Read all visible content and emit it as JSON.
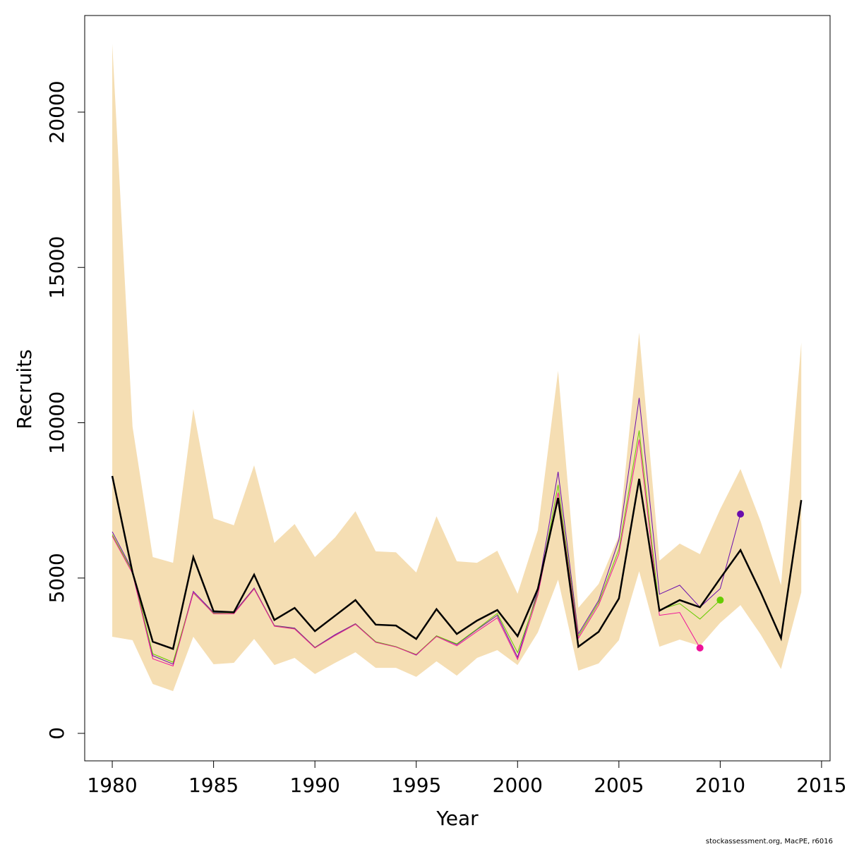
{
  "chart_data": {
    "type": "line",
    "xlabel": "Year",
    "ylabel": "Recruits",
    "footnote": "stockassessment.org, MacPE, r6016",
    "x": [
      1980,
      1981,
      1982,
      1983,
      1984,
      1985,
      1986,
      1987,
      1988,
      1989,
      1990,
      1991,
      1992,
      1993,
      1994,
      1995,
      1996,
      1997,
      1998,
      1999,
      2000,
      2001,
      2002,
      2003,
      2004,
      2005,
      2006,
      2007,
      2008,
      2009,
      2010,
      2011,
      2012,
      2013,
      2014
    ],
    "xlim": [
      1978.64,
      2015.42
    ],
    "xticks": [
      1980,
      1985,
      1990,
      1995,
      2000,
      2005,
      2010,
      2015
    ],
    "ylim": [
      -885,
      23110
    ],
    "yticks": [
      0,
      5000,
      10000,
      15000,
      20000
    ],
    "band": {
      "color": "#f5deb3",
      "upper": [
        22200,
        9875,
        5675,
        5490,
        10440,
        6920,
        6700,
        8630,
        6130,
        6740,
        5675,
        6310,
        7150,
        5860,
        5830,
        5180,
        6990,
        5540,
        5490,
        5880,
        4495,
        6540,
        11670,
        4040,
        4810,
        6360,
        12900,
        5560,
        6110,
        5770,
        7220,
        8510,
        6810,
        4770,
        12580
      ],
      "lower": [
        3110,
        3000,
        1590,
        1360,
        3110,
        2225,
        2270,
        3040,
        2200,
        2430,
        1910,
        2270,
        2610,
        2110,
        2110,
        1820,
        2320,
        1860,
        2430,
        2680,
        2200,
        3250,
        4950,
        2020,
        2250,
        3000,
        5220,
        2790,
        3020,
        2815,
        3560,
        4130,
        3180,
        2070,
        4540
      ]
    },
    "series": [
      {
        "color": "#6a0dad",
        "width": 1,
        "end_marker": true,
        "values": [
          6490,
          5250,
          2500,
          2230,
          4570,
          3890,
          3890,
          4680,
          3470,
          3390,
          2770,
          3180,
          3530,
          2950,
          2790,
          2520,
          3140,
          2860,
          3340,
          3800,
          2450,
          4600,
          8420,
          3200,
          4280,
          6230,
          10800,
          4480,
          4770,
          4060,
          4660,
          7060,
          null,
          null,
          null
        ]
      },
      {
        "color": "#66cc00",
        "width": 1,
        "end_marker": true,
        "values": [
          6400,
          5200,
          2560,
          2290,
          4520,
          3870,
          3860,
          4660,
          3460,
          3370,
          2760,
          3150,
          3520,
          2950,
          2790,
          2540,
          3140,
          2880,
          3360,
          3860,
          2600,
          4500,
          8000,
          3130,
          4210,
          5920,
          9750,
          3980,
          4180,
          3680,
          4290,
          null,
          null,
          null,
          null
        ]
      },
      {
        "color": "#ee1199",
        "width": 1,
        "end_marker": true,
        "values": [
          6350,
          5150,
          2400,
          2170,
          4530,
          3850,
          3850,
          4650,
          3450,
          3360,
          2750,
          3150,
          3510,
          2930,
          2780,
          2530,
          3120,
          2820,
          3280,
          3720,
          2380,
          4450,
          7750,
          3060,
          4130,
          5780,
          9460,
          3800,
          3890,
          2750,
          null,
          null,
          null,
          null,
          null
        ]
      },
      {
        "color": "#000000",
        "width": 2.5,
        "end_marker": false,
        "values": [
          8286,
          5180,
          2950,
          2720,
          5675,
          3930,
          3900,
          5110,
          3650,
          4040,
          3290,
          3790,
          4290,
          3500,
          3470,
          3040,
          4000,
          3200,
          3630,
          3970,
          3130,
          4650,
          7580,
          2790,
          3270,
          4340,
          8195,
          3950,
          4290,
          4060,
          4990,
          5900,
          4540,
          3065,
          7510
        ]
      }
    ]
  }
}
